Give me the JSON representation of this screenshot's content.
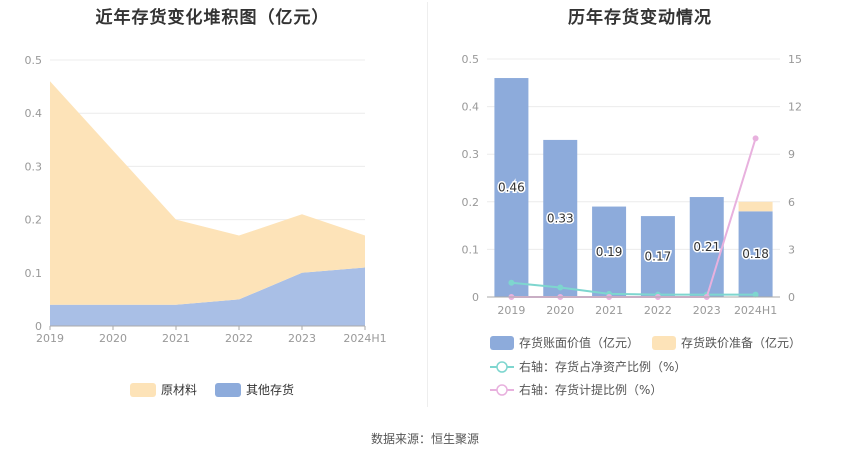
{
  "left_chart_title": "近年存货变化堆积图（亿元）",
  "right_chart_title": "历年存货变动情况",
  "source_label": "数据来源：",
  "source_value": "恒生聚源",
  "colors": {
    "raw_material": "#fde3b8",
    "other_inventory": "#a9bfe6",
    "book_value": "#8dabdb",
    "impairment": "#fde3b8",
    "net_asset_ratio": "#7ed6cf",
    "provision_ratio": "#e8b1de"
  },
  "chart_data": [
    {
      "type": "area",
      "stacked": true,
      "categories": [
        "2019",
        "2020",
        "2021",
        "2022",
        "2023",
        "2024H1"
      ],
      "ylim": [
        0,
        0.5
      ],
      "yticks": [
        0,
        0.1,
        0.2,
        0.3,
        0.4,
        0.5
      ],
      "ytick_labels": [
        "0",
        "0.1",
        "0.2",
        "0.3",
        "0.4",
        "0.5"
      ],
      "grid": true,
      "legend_position": "bottom-center",
      "series": [
        {
          "name": "其他存货",
          "values": [
            0.04,
            0.04,
            0.04,
            0.05,
            0.1,
            0.11
          ],
          "color": "#a9bfe6"
        },
        {
          "name": "原材料",
          "values": [
            0.42,
            0.29,
            0.16,
            0.12,
            0.11,
            0.06
          ],
          "color": "#fde3b8"
        }
      ],
      "legend": [
        {
          "name": "原材料",
          "color": "#fde3b8"
        },
        {
          "name": "其他存货",
          "color": "#8dabdb"
        }
      ]
    },
    {
      "type": "bar",
      "stacked": true,
      "categories": [
        "2019",
        "2020",
        "2021",
        "2022",
        "2023",
        "2024H1"
      ],
      "ylim": [
        0,
        0.5
      ],
      "yticks_left": [
        0,
        0.1,
        0.2,
        0.3,
        0.4,
        0.5
      ],
      "ytick_labels_left": [
        "0",
        "0.1",
        "0.2",
        "0.3",
        "0.4",
        "0.5"
      ],
      "ylim_right": [
        0,
        15
      ],
      "yticks_right": [
        0,
        3,
        6,
        9,
        12,
        15
      ],
      "ytick_labels_right": [
        "0",
        "3",
        "6",
        "9",
        "12",
        "15"
      ],
      "grid": true,
      "legend_position": "bottom",
      "series": [
        {
          "name": "存货账面价值（亿元）",
          "type": "bar",
          "values": [
            0.46,
            0.33,
            0.19,
            0.17,
            0.21,
            0.18
          ],
          "labels": [
            "0.46",
            "0.33",
            "0.19",
            "0.17",
            "0.21",
            "0.18"
          ],
          "color": "#8dabdb"
        },
        {
          "name": "存货跌价准备（亿元）",
          "type": "bar",
          "values": [
            0,
            0,
            0,
            0,
            0,
            0.02
          ],
          "color": "#fde3b8"
        },
        {
          "name": "右轴：存货占净资产比例（%）",
          "type": "line",
          "axis": "right",
          "values": [
            0.9,
            0.6,
            0.2,
            0.15,
            0.15,
            0.15
          ],
          "color": "#7ed6cf"
        },
        {
          "name": "右轴：存货计提比例（%）",
          "type": "line",
          "axis": "right",
          "values": [
            0,
            0,
            0,
            0,
            0,
            10.0
          ],
          "color": "#e8b1de"
        }
      ]
    }
  ]
}
